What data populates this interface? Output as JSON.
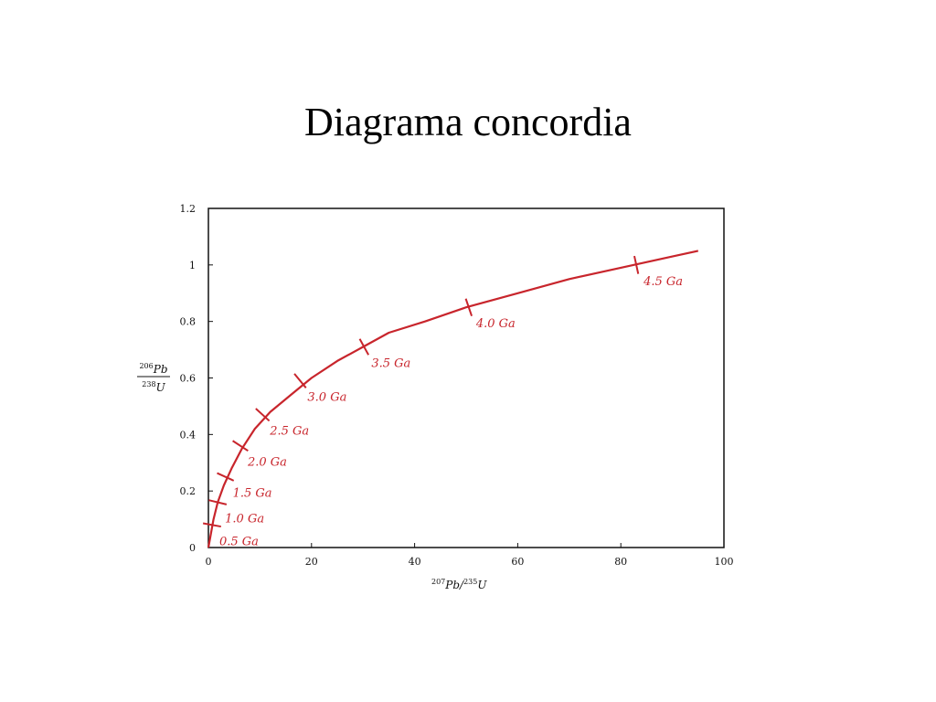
{
  "title": "Diagrama concordia",
  "chart_data": {
    "type": "line",
    "xlim": [
      0,
      100
    ],
    "ylim": [
      0,
      1.2
    ],
    "x_ticks": [
      0,
      20,
      40,
      60,
      80,
      100
    ],
    "y_ticks": [
      0,
      0.2,
      0.4,
      0.6,
      0.8,
      1,
      1.2
    ],
    "x_tick_labels": [
      "0",
      "20",
      "40",
      "60",
      "80",
      "100"
    ],
    "y_tick_labels": [
      "0",
      "0.2",
      "0.4",
      "0.6",
      "0.8",
      "1",
      "1.2"
    ],
    "xlabel": {
      "num_sup": "207",
      "num": "Pb",
      "sep": "/",
      "den_sup": "235",
      "den": "U"
    },
    "ylabel": {
      "num_sup": "206",
      "num": "Pb",
      "den_sup": "238",
      "den": "U"
    },
    "series": [
      {
        "color": "#c8252c",
        "x": [
          0,
          0.5,
          1.0,
          1.8,
          3.0,
          4.5,
          6.5,
          9,
          12,
          16,
          20,
          25,
          30,
          35,
          42,
          50,
          60,
          70,
          80,
          90,
          95
        ],
        "y": [
          0,
          0.05,
          0.1,
          0.16,
          0.22,
          0.28,
          0.35,
          0.42,
          0.48,
          0.54,
          0.6,
          0.66,
          0.71,
          0.76,
          0.8,
          0.85,
          0.9,
          0.95,
          0.99,
          1.03,
          1.05
        ]
      }
    ],
    "age_markers": [
      {
        "label": "0.5 Ga",
        "x": 0.7,
        "y": 0.08
      },
      {
        "label": "1.0 Ga",
        "x": 1.8,
        "y": 0.16
      },
      {
        "label": "1.5 Ga",
        "x": 3.3,
        "y": 0.25
      },
      {
        "label": "2.0 Ga",
        "x": 6.2,
        "y": 0.36
      },
      {
        "label": "2.5 Ga",
        "x": 10.5,
        "y": 0.47
      },
      {
        "label": "3.0 Ga",
        "x": 17.8,
        "y": 0.59
      },
      {
        "label": "3.5 Ga",
        "x": 30.2,
        "y": 0.71
      },
      {
        "label": "4.0 Ga",
        "x": 50.5,
        "y": 0.85
      },
      {
        "label": "4.5 Ga",
        "x": 83.0,
        "y": 1.0
      }
    ]
  }
}
